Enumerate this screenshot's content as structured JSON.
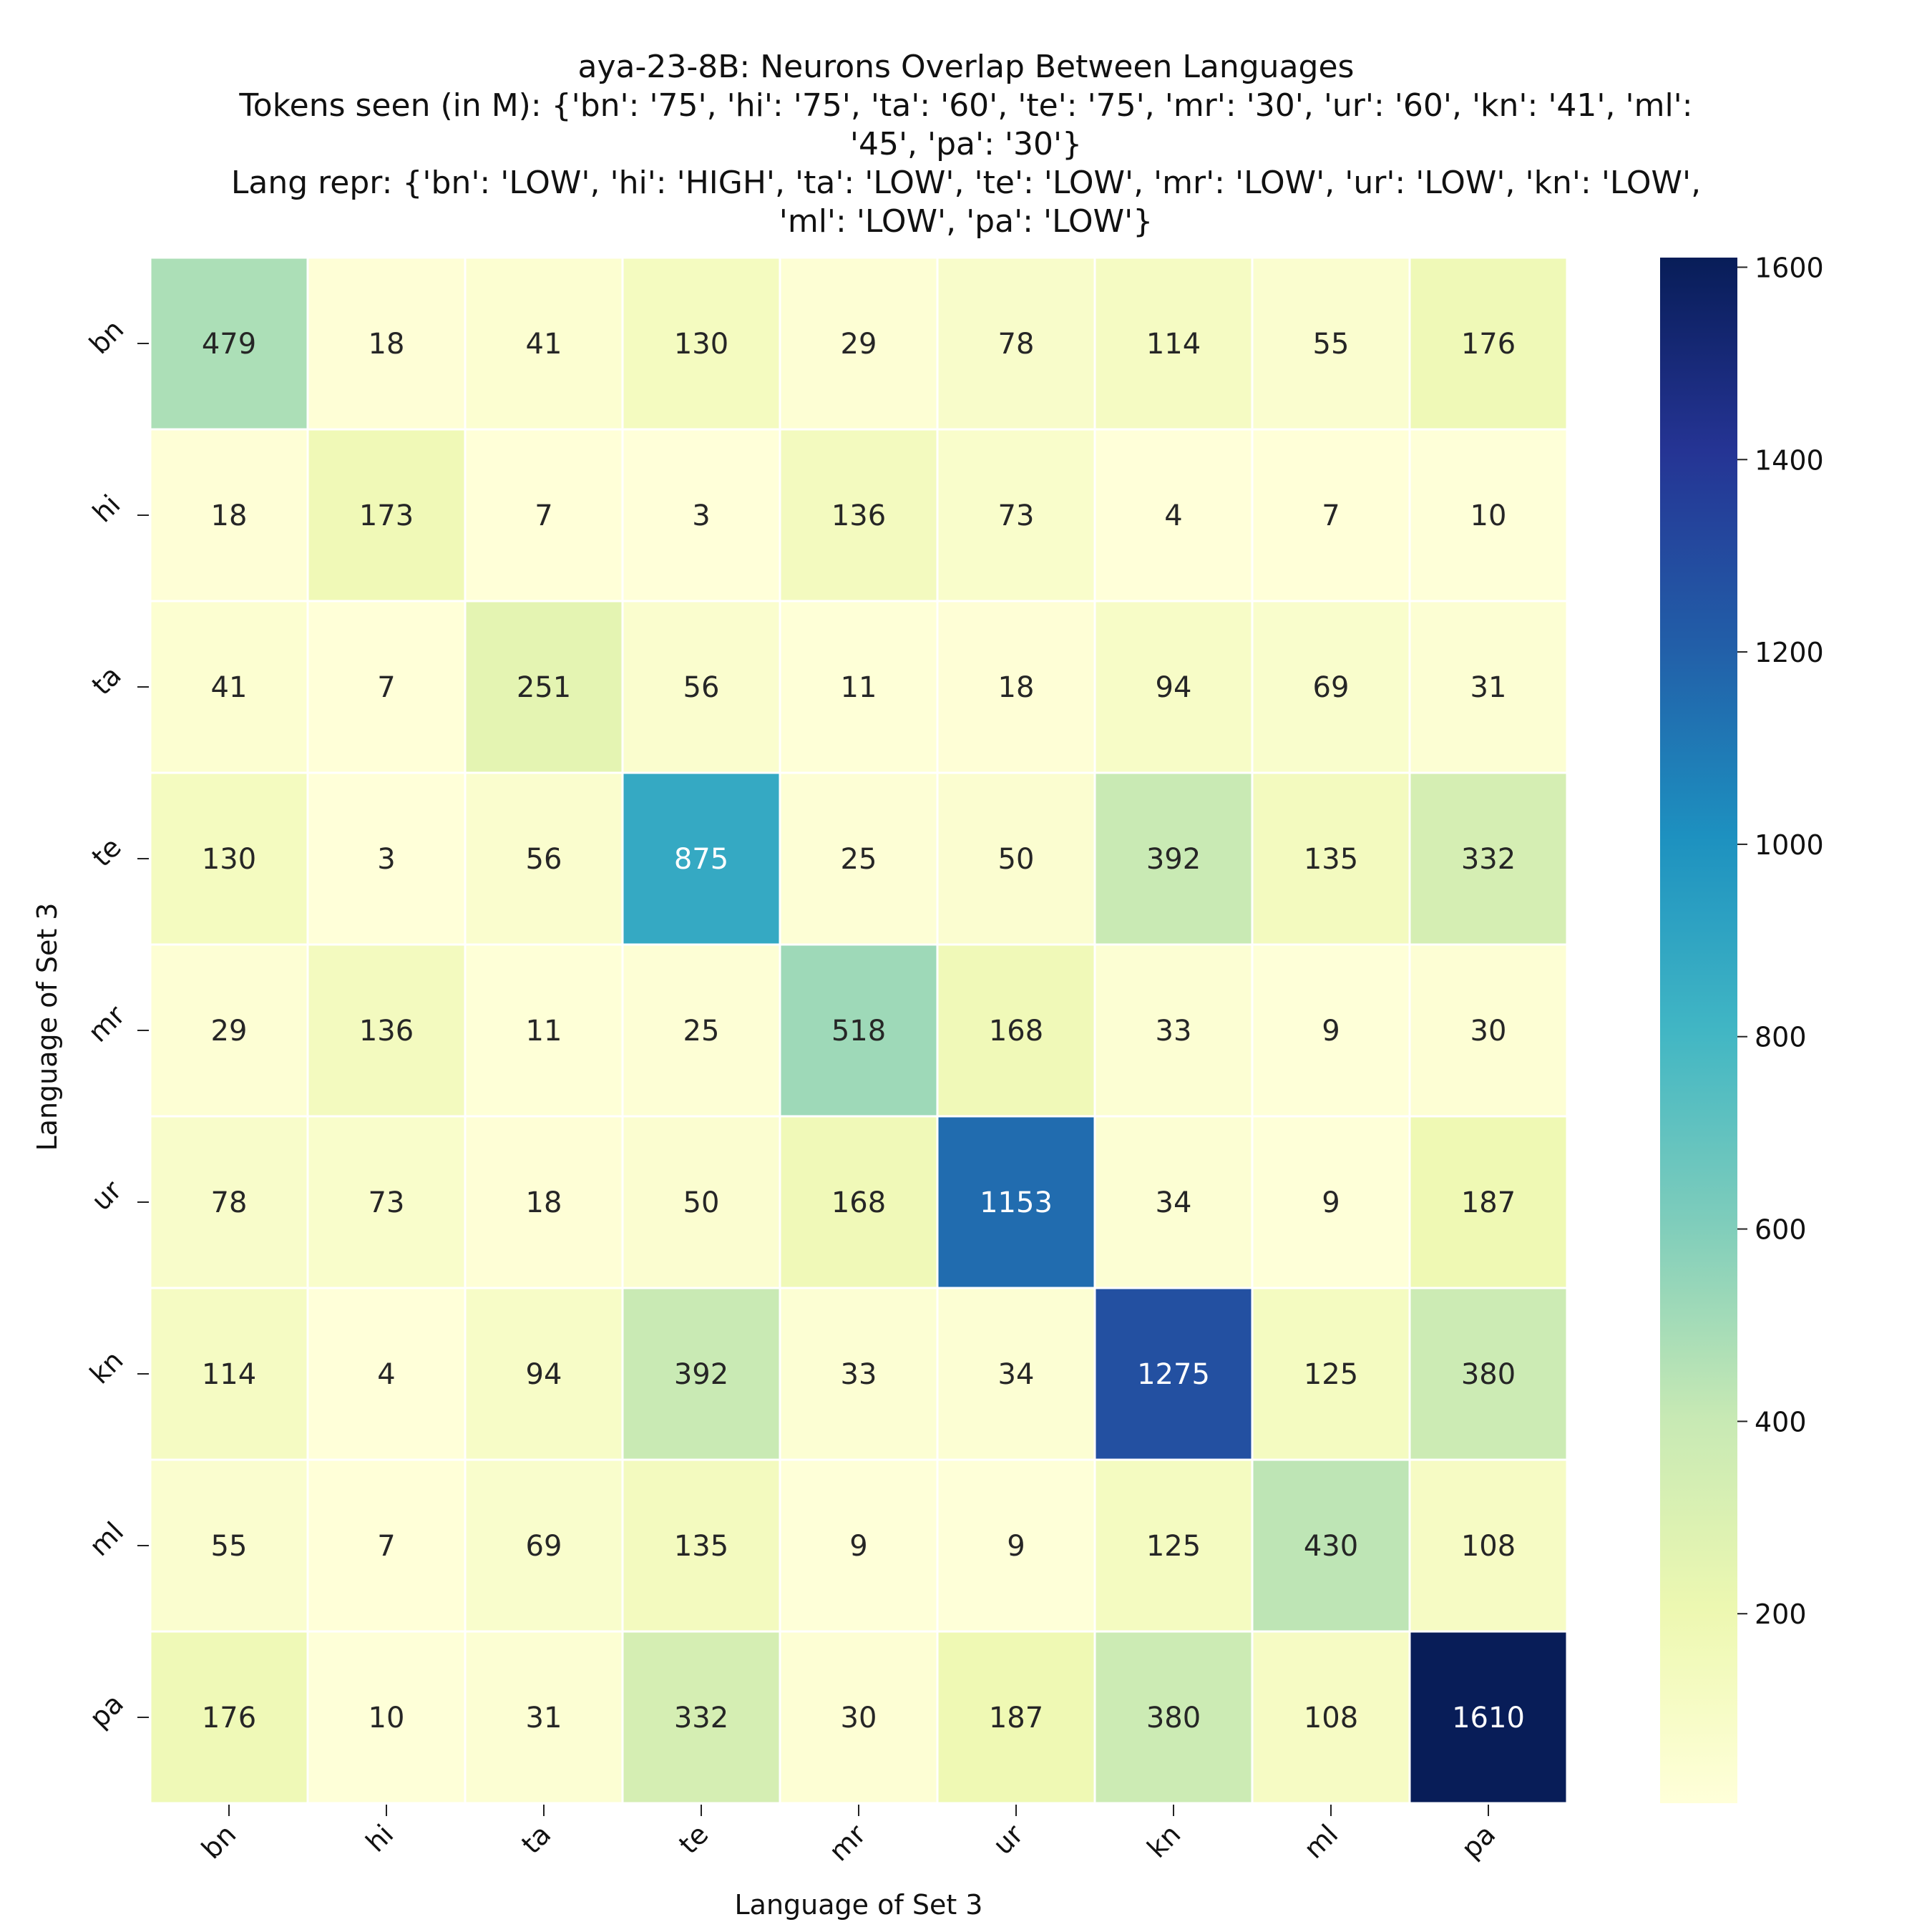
{
  "title_lines": [
    "aya-23-8B: Neurons Overlap Between Languages",
    "Tokens seen (in M): {'bn': '75', 'hi': '75', 'ta': '60', 'te': '75', 'mr': '30', 'ur': '60', 'kn': '41', 'ml':",
    "'45', 'pa': '30'}",
    "Lang repr: {'bn': 'LOW', 'hi': 'HIGH', 'ta': 'LOW', 'te': 'LOW', 'mr': 'LOW', 'ur': 'LOW', 'kn': 'LOW',",
    "'ml': 'LOW', 'pa': 'LOW'}"
  ],
  "chart_data": {
    "type": "heatmap",
    "title": "aya-23-8B: Neurons Overlap Between Languages",
    "xlabel": "Language of Set 3",
    "ylabel": "Language of Set 3",
    "x_categories": [
      "bn",
      "hi",
      "ta",
      "te",
      "mr",
      "ur",
      "kn",
      "ml",
      "pa"
    ],
    "y_categories": [
      "bn",
      "hi",
      "ta",
      "te",
      "mr",
      "ur",
      "kn",
      "ml",
      "pa"
    ],
    "values": [
      [
        479,
        18,
        41,
        130,
        29,
        78,
        114,
        55,
        176
      ],
      [
        18,
        173,
        7,
        3,
        136,
        73,
        4,
        7,
        10
      ],
      [
        41,
        7,
        251,
        56,
        11,
        18,
        94,
        69,
        31
      ],
      [
        130,
        3,
        56,
        875,
        25,
        50,
        392,
        135,
        332
      ],
      [
        29,
        136,
        11,
        25,
        518,
        168,
        33,
        9,
        30
      ],
      [
        78,
        73,
        18,
        50,
        168,
        1153,
        34,
        9,
        187
      ],
      [
        114,
        4,
        94,
        392,
        33,
        34,
        1275,
        125,
        380
      ],
      [
        55,
        7,
        69,
        135,
        9,
        9,
        125,
        430,
        108
      ],
      [
        176,
        10,
        31,
        332,
        30,
        187,
        380,
        108,
        1610
      ]
    ],
    "colormap": "YlGnBu",
    "colorbar_range": [
      3,
      1610
    ],
    "colorbar_ticks": [
      200,
      400,
      600,
      800,
      1000,
      1200,
      1400,
      1600
    ]
  }
}
